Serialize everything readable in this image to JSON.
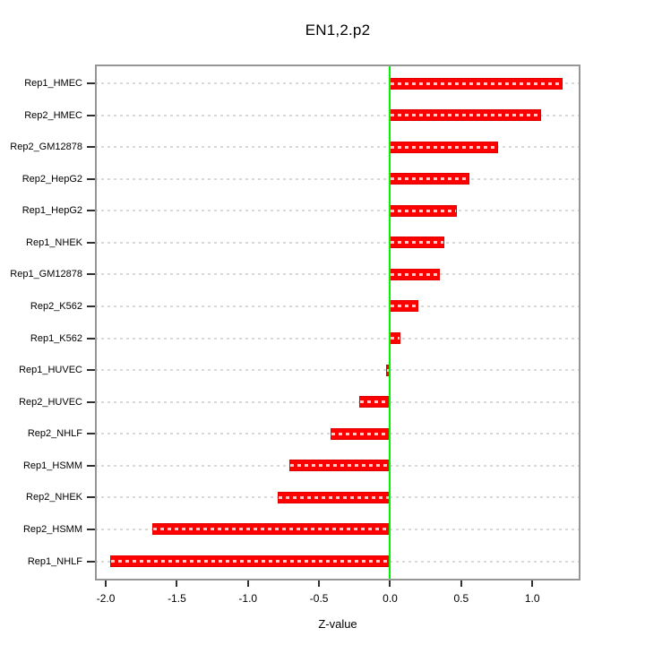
{
  "title": "EN1,2.p2",
  "chart_data": {
    "type": "bar",
    "orientation": "horizontal",
    "title": "EN1,2.p2",
    "xlabel": "Z-value",
    "ylabel": "",
    "grid": true,
    "grid_style": "dotted",
    "legend": "none",
    "xlim": [
      -2.076,
      1.339
    ],
    "x_ticks": [
      -2.0,
      -1.5,
      -1.0,
      -0.5,
      0.0,
      0.5,
      1.0
    ],
    "x_tick_labels": [
      "-2.0",
      "-1.5",
      "-1.0",
      "-0.5",
      "0.0",
      "0.5",
      "1.0"
    ],
    "categories": [
      "Rep1_HMEC",
      "Rep2_HMEC",
      "Rep2_GM12878",
      "Rep2_HepG2",
      "Rep1_HepG2",
      "Rep1_NHEK",
      "Rep1_GM12878",
      "Rep2_K562",
      "Rep1_K562",
      "Rep1_HUVEC",
      "Rep2_HUVEC",
      "Rep2_NHLF",
      "Rep1_HSMM",
      "Rep2_NHEK",
      "Rep2_HSMM",
      "Rep1_NHLF"
    ],
    "values": [
      1.21,
      1.06,
      0.76,
      0.56,
      0.47,
      0.38,
      0.35,
      0.2,
      0.07,
      -0.03,
      -0.22,
      -0.42,
      -0.71,
      -0.79,
      -1.67,
      -1.97
    ],
    "bar_color": "#ff0000",
    "bar_border_color": "#e00000",
    "zero_line_color": "#00f400",
    "zero_line_x": 0.0,
    "grid_color": "#d8d8d8",
    "box_color": "#969696",
    "text_color": "#000000"
  }
}
